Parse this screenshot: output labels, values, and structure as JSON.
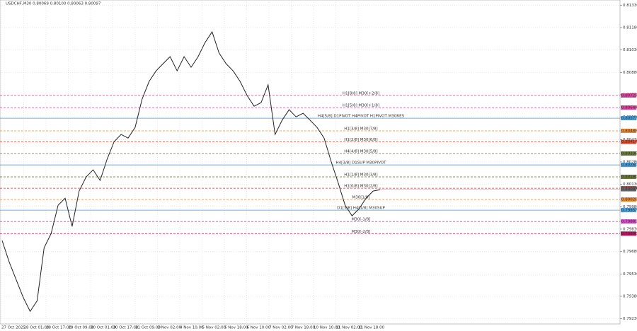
{
  "chart_data": {
    "type": "line",
    "title": "USDCHF,M30  0.80069 0.80100 0.80063 0.80097",
    "current_price": {
      "value": 0.80097,
      "label": "0.80097"
    },
    "x_labels": [
      "27 Oct 2025",
      "28 Oct 01:00",
      "28 Oct 17:00",
      "29 Oct 09:00",
      "30 Oct 01:00",
      "30 Oct 17:00",
      "31 Oct 09:00",
      "3 Nov 02:00",
      "4 Nov 10:00",
      "5 Nov 02:00",
      "5 Nov 18:00",
      "6 Nov 10:00",
      "7 Nov 02:00",
      "7 Nov 18:00",
      "10 Nov 10:00",
      "11 Nov 02:00",
      "11 Nov 18:00"
    ],
    "series": [
      {
        "name": "USDCHF",
        "color": "#222222",
        "values": [
          0.79753,
          0.79611,
          0.79492,
          0.79374,
          0.79279,
          0.7935,
          0.79705,
          0.798,
          0.7999,
          0.80037,
          0.79848,
          0.80085,
          0.80179,
          0.80227,
          0.80156,
          0.80298,
          0.80416,
          0.80464,
          0.8044,
          0.80511,
          0.80701,
          0.80819,
          0.8089,
          0.80938,
          0.80985,
          0.8089,
          0.80985,
          0.80914,
          0.80985,
          0.8108,
          0.81151,
          0.81009,
          0.80938,
          0.8089,
          0.80819,
          0.80725,
          0.80653,
          0.80677,
          0.80796,
          0.80464,
          0.80559,
          0.8063,
          0.80582,
          0.80606,
          0.80559,
          0.80511,
          0.8044,
          0.80284,
          0.80142,
          0.7999,
          0.79919,
          0.79966,
          0.80037,
          0.80085,
          0.80094
        ]
      }
    ],
    "levels": [
      {
        "label": "H1[8/8] M30[+2/8]",
        "value": 0.80725,
        "value_label": "0.80725",
        "color": "#e040a0",
        "style": "dashed"
      },
      {
        "label": "H1[5/8] M30[+1/8]",
        "value": 0.80644,
        "value_label": "0.80644",
        "color": "#e040a0",
        "style": "dashed"
      },
      {
        "label": "H4[5/8] D1PIVOT H4PIVOT H1PIVOT M30RES",
        "value": 0.80573,
        "value_label": "0.80573",
        "color": "#3d9ee0",
        "style": "solid"
      },
      {
        "label": "H1[3/8] M30[7/8]",
        "value": 0.80488,
        "value_label": "0.80488",
        "color": "#f08a30",
        "style": "dashed"
      },
      {
        "label": "H1[2/8] M30[6/8]",
        "value": 0.80414,
        "value_label": "0.80414",
        "color": "#e05030",
        "style": "dashed"
      },
      {
        "label": "H4[4/8] M30[5/8]",
        "value": 0.80336,
        "value_label": "0.80336",
        "color": "#6b7a3a",
        "style": "dashed"
      },
      {
        "label": "H4[3/8] D1SUP M30PIVOT",
        "value": 0.8026,
        "value_label": "0.80260",
        "color": "#3d9ee0",
        "style": "solid"
      },
      {
        "label": "H1[1/8] M30[3/8]",
        "value": 0.8018,
        "value_label": "0.80180",
        "color": "#6b7a3a",
        "style": "dashed"
      },
      {
        "label": "H1[0/8] M30[2/8]",
        "value": 0.80104,
        "value_label": "0.80104",
        "color": "#e03030",
        "style": "dashed"
      },
      {
        "label": "M30[1/8]",
        "value": 0.80028,
        "value_label": "0.80028",
        "color": "#f08a30",
        "style": "dashed"
      },
      {
        "label": "D1[3/8] H4[1/8] M30SUP",
        "value": 0.79957,
        "value_label": "0.79957",
        "color": "#3d9ee0",
        "style": "solid"
      },
      {
        "label": "M30[-1/8]",
        "value": 0.79881,
        "value_label": "0.79881",
        "color": "#e040d0",
        "style": "dashed"
      },
      {
        "label": "M30[-2/8]",
        "value": 0.798,
        "value_label": "0.79800",
        "color": "#c01060",
        "style": "dashed"
      }
    ],
    "ylim": [
      0.79195,
      0.81355
    ],
    "yticks": [
      {
        "value": 0.7923,
        "label": "0.79230"
      },
      {
        "value": 0.7938,
        "label": "0.79380"
      },
      {
        "value": 0.7953,
        "label": "0.79530"
      },
      {
        "value": 0.7968,
        "label": "0.79680"
      },
      {
        "value": 0.7983,
        "label": "0.79830"
      },
      {
        "value": 0.7998,
        "label": "0.79980"
      },
      {
        "value": 0.8013,
        "label": "0.80130"
      },
      {
        "value": 0.8028,
        "label": "0.80280"
      },
      {
        "value": 0.8043,
        "label": "0.80430"
      },
      {
        "value": 0.8058,
        "label": "0.80580"
      },
      {
        "value": 0.8073,
        "label": "0.80730"
      },
      {
        "value": 0.8088,
        "label": "0.80880"
      },
      {
        "value": 0.8103,
        "label": "0.81030"
      },
      {
        "value": 0.8118,
        "label": "0.81180"
      },
      {
        "value": 0.8133,
        "label": "0.81330"
      }
    ],
    "grid": true
  }
}
